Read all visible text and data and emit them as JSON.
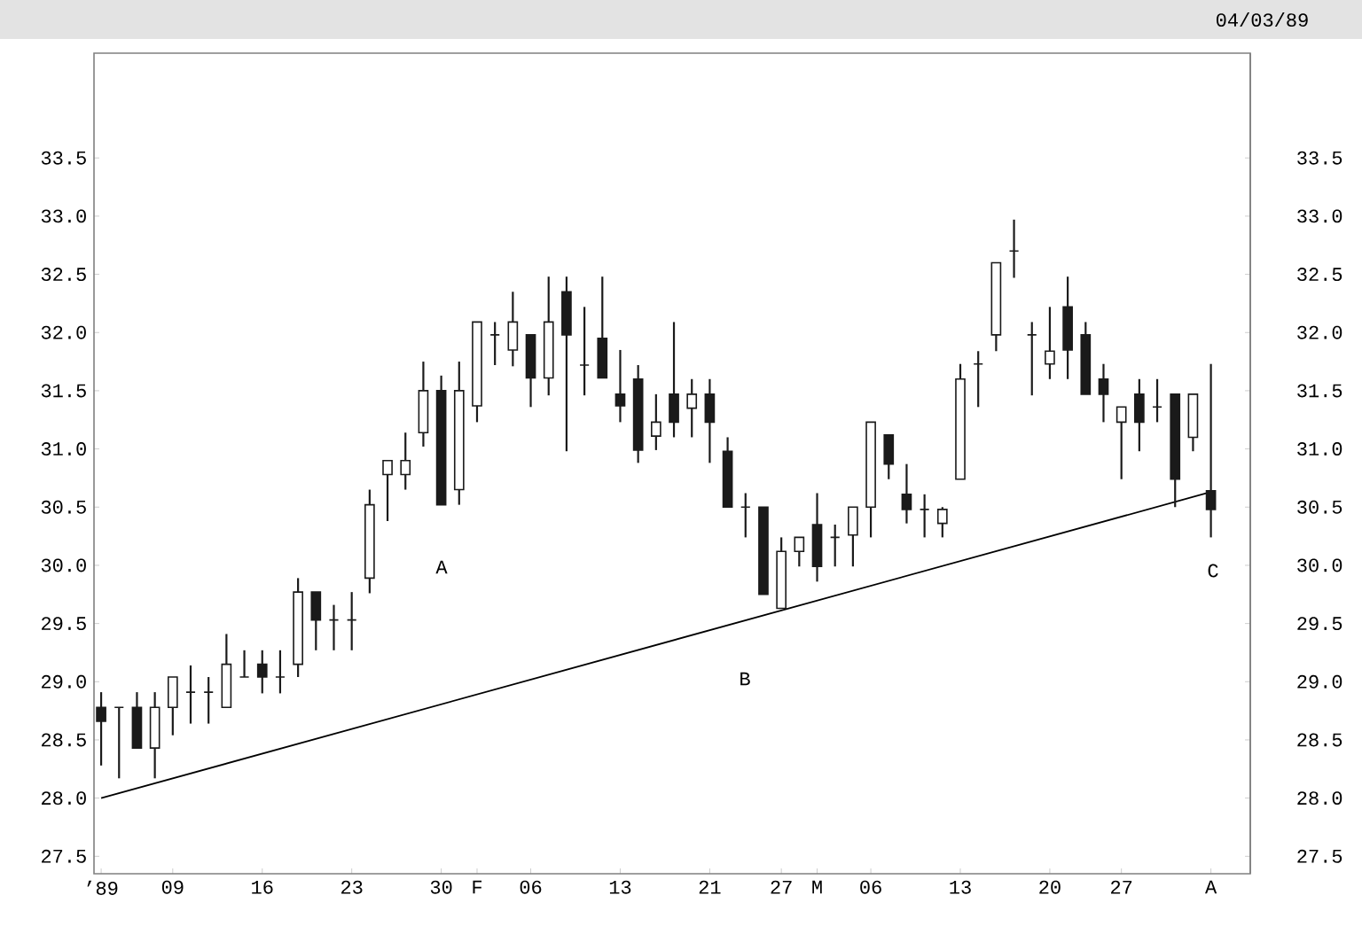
{
  "chart_data": {
    "type": "candlestick",
    "title": "04/03/89",
    "color": "#1a1a1a",
    "categories": [
      "’89",
      null,
      null,
      null,
      "09",
      null,
      null,
      null,
      null,
      "16",
      null,
      null,
      null,
      null,
      "23",
      null,
      null,
      null,
      null,
      "30",
      null,
      "F",
      null,
      null,
      "06",
      null,
      null,
      null,
      null,
      "13",
      null,
      null,
      null,
      null,
      "21",
      null,
      null,
      null,
      "27",
      null,
      "M",
      null,
      null,
      "06",
      null,
      null,
      null,
      null,
      "13",
      null,
      null,
      null,
      null,
      "20",
      null,
      null,
      null,
      "27",
      null,
      null,
      null,
      null,
      "A"
    ],
    "ohlc": [
      [
        28.78,
        28.91,
        28.28,
        28.66
      ],
      [
        28.78,
        28.78,
        28.17,
        28.78
      ],
      [
        28.78,
        28.91,
        28.43,
        28.43
      ],
      [
        28.43,
        28.91,
        28.17,
        28.78
      ],
      [
        28.78,
        29.04,
        28.54,
        29.04
      ],
      [
        28.91,
        29.14,
        28.64,
        28.91
      ],
      [
        28.91,
        29.04,
        28.64,
        28.91
      ],
      [
        28.78,
        29.41,
        28.78,
        29.15
      ],
      [
        29.04,
        29.27,
        29.04,
        29.04
      ],
      [
        29.15,
        29.27,
        28.9,
        29.04
      ],
      [
        29.04,
        29.27,
        28.9,
        29.04
      ],
      [
        29.15,
        29.89,
        29.04,
        29.77
      ],
      [
        29.77,
        29.77,
        29.27,
        29.53
      ],
      [
        29.53,
        29.66,
        29.27,
        29.53
      ],
      [
        29.53,
        29.77,
        29.27,
        29.53
      ],
      [
        29.89,
        30.65,
        29.76,
        30.52
      ],
      [
        30.78,
        30.9,
        30.38,
        30.9
      ],
      [
        30.78,
        31.14,
        30.65,
        30.9
      ],
      [
        31.14,
        31.75,
        31.02,
        31.5
      ],
      [
        31.5,
        31.63,
        30.52,
        30.52
      ],
      [
        30.65,
        31.75,
        30.52,
        31.5
      ],
      [
        31.37,
        32.09,
        31.23,
        32.09
      ],
      [
        31.98,
        32.09,
        31.72,
        31.98
      ],
      [
        31.85,
        32.35,
        31.71,
        32.09
      ],
      [
        31.98,
        31.98,
        31.36,
        31.61
      ],
      [
        31.61,
        32.48,
        31.46,
        32.09
      ],
      [
        32.35,
        32.48,
        30.98,
        31.98
      ],
      [
        31.72,
        32.22,
        31.46,
        31.72
      ],
      [
        31.95,
        32.48,
        31.61,
        31.61
      ],
      [
        31.47,
        31.85,
        31.23,
        31.37
      ],
      [
        31.6,
        31.72,
        30.88,
        30.99
      ],
      [
        31.11,
        31.47,
        30.99,
        31.23
      ],
      [
        31.47,
        32.09,
        31.1,
        31.23
      ],
      [
        31.35,
        31.6,
        31.1,
        31.47
      ],
      [
        31.47,
        31.6,
        30.88,
        31.23
      ],
      [
        30.98,
        31.1,
        30.5,
        30.5
      ],
      [
        30.5,
        30.62,
        30.24,
        30.5
      ],
      [
        30.5,
        30.5,
        29.75,
        29.75
      ],
      [
        29.63,
        30.24,
        29.63,
        30.12
      ],
      [
        30.12,
        30.24,
        29.99,
        30.24
      ],
      [
        30.35,
        30.62,
        29.86,
        29.99
      ],
      [
        30.24,
        30.35,
        29.99,
        30.24
      ],
      [
        30.26,
        30.5,
        29.99,
        30.5
      ],
      [
        30.5,
        31.23,
        30.24,
        31.23
      ],
      [
        31.12,
        31.12,
        30.74,
        30.87
      ],
      [
        30.61,
        30.87,
        30.36,
        30.48
      ],
      [
        30.48,
        30.61,
        30.24,
        30.48
      ],
      [
        30.36,
        30.5,
        30.24,
        30.48
      ],
      [
        30.74,
        31.73,
        30.74,
        31.6
      ],
      [
        31.73,
        31.84,
        31.36,
        31.73
      ],
      [
        31.98,
        32.6,
        31.84,
        32.6
      ],
      [
        32.7,
        32.97,
        32.47,
        32.7
      ],
      [
        31.98,
        32.09,
        31.46,
        31.98
      ],
      [
        31.73,
        32.22,
        31.6,
        31.84
      ],
      [
        32.22,
        32.48,
        31.6,
        31.85
      ],
      [
        31.98,
        32.09,
        31.47,
        31.47
      ],
      [
        31.6,
        31.73,
        31.23,
        31.47
      ],
      [
        31.23,
        31.36,
        30.74,
        31.36
      ],
      [
        31.47,
        31.6,
        30.98,
        31.23
      ],
      [
        31.36,
        31.6,
        31.23,
        31.36
      ],
      [
        31.47,
        31.47,
        30.5,
        30.74
      ],
      [
        31.1,
        31.47,
        30.98,
        31.47
      ],
      [
        30.64,
        31.73,
        30.24,
        30.48
      ]
    ],
    "series": [
      {
        "type": "line",
        "color": "#000000",
        "x": [
          "’89",
          "A"
        ],
        "values": [
          28.0,
          30.63
        ]
      }
    ],
    "ylim": [
      27.35,
      34.4
    ],
    "yticks": [
      27.5,
      {
        "value": 28,
        "label": "28.0"
      },
      28.5,
      {
        "value": 29,
        "label": "29.0"
      },
      29.5,
      {
        "value": 30,
        "label": "30.0"
      },
      30.5,
      {
        "value": 31,
        "label": "31.0"
      },
      31.5,
      {
        "value": 32,
        "label": "32.0"
      },
      32.5,
      {
        "value": 33,
        "label": "33.0"
      },
      33.5
    ],
    "y2lim": [
      27.35,
      34.4
    ],
    "y2ticks": [
      27.5,
      {
        "value": 28,
        "label": "28.0"
      },
      28.5,
      {
        "value": 29,
        "label": "29.0"
      },
      29.5,
      {
        "value": 30,
        "label": "30.0"
      },
      30.5,
      {
        "value": 31,
        "label": "31.0"
      },
      31.5,
      {
        "value": 32,
        "label": "32.0"
      },
      32.5,
      {
        "value": 33,
        "label": "33.0"
      },
      33.5
    ],
    "annotations": [
      "A",
      "B",
      "C"
    ]
  }
}
